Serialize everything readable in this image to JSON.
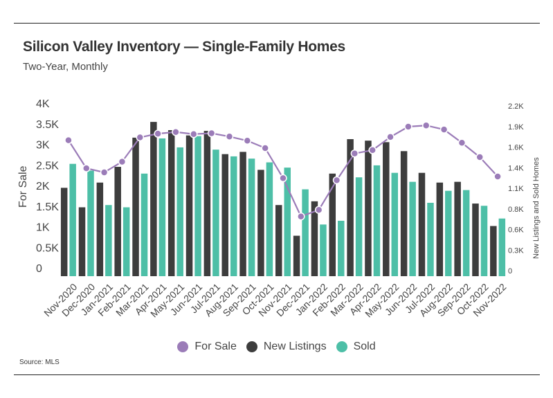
{
  "chart_data": {
    "type": "bar",
    "title": "Silicon Valley Inventory — Single-Family Homes",
    "subtitle": "Two-Year, Monthly",
    "source": "Source: MLS",
    "categories": [
      "Nov-2020",
      "Dec-2020",
      "Jan-2021",
      "Feb-2021",
      "Mar-2021",
      "Apr-2021",
      "May-2021",
      "Jun-2021",
      "Jul-2021",
      "Aug-2021",
      "Sep-2021",
      "Oct-2021",
      "Nov-2021",
      "Dec-2021",
      "Jan-2022",
      "Feb-2022",
      "Mar-2022",
      "Apr-2022",
      "May-2022",
      "Jun-2022",
      "Jul-2022",
      "Aug-2022",
      "Sep-2022",
      "Oct-2022",
      "Nov-2022"
    ],
    "y_left": {
      "label": "For Sale",
      "ylim": [
        0,
        4000
      ],
      "ticks": [
        "0",
        "0.5K",
        "1K",
        "1.5K",
        "2K",
        "2.5K",
        "3K",
        "3.5K",
        "4K"
      ]
    },
    "y_right": {
      "label": "New Listings and Sold Homes",
      "ylim": [
        0,
        2200
      ],
      "ticks": [
        "0",
        "0.3K",
        "0.6K",
        "0.8K",
        "1.1K",
        "1.4K",
        "1.6K",
        "1.9K",
        "2.2K"
      ]
    },
    "series": [
      {
        "name": "For Sale",
        "type": "line",
        "axis": "left",
        "color": "#9b7cb8",
        "values": [
          3300,
          2620,
          2520,
          2780,
          3370,
          3460,
          3500,
          3450,
          3470,
          3390,
          3290,
          3110,
          2380,
          1450,
          1610,
          2330,
          2980,
          3060,
          3380,
          3630,
          3660,
          3560,
          3240,
          2890,
          2420
        ]
      },
      {
        "name": "New Listings",
        "type": "bar",
        "axis": "right",
        "color": "#3d3d3d",
        "values": [
          1180,
          920,
          1250,
          1460,
          1850,
          2060,
          1950,
          1880,
          1940,
          1630,
          1660,
          1420,
          950,
          540,
          1000,
          1370,
          1830,
          1810,
          1790,
          1670,
          1380,
          1250,
          1260,
          970,
          670
        ]
      },
      {
        "name": "Sold",
        "type": "bar",
        "axis": "right",
        "color": "#4dbfa7",
        "values": [
          1500,
          1410,
          950,
          920,
          1370,
          1840,
          1720,
          1870,
          1690,
          1600,
          1570,
          1520,
          1450,
          1160,
          690,
          740,
          1320,
          1480,
          1380,
          1260,
          980,
          1140,
          1150,
          940,
          770
        ]
      }
    ],
    "legend": {
      "placement": "bottom-center",
      "items": [
        "For Sale",
        "New Listings",
        "Sold"
      ]
    },
    "grid": false
  }
}
